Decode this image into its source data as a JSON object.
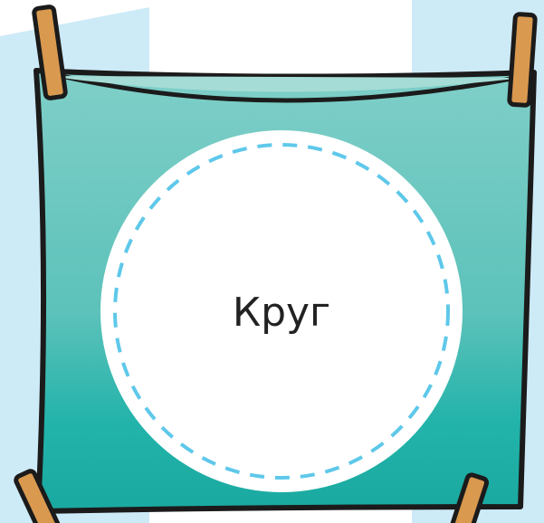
{
  "label": "Круг"
}
